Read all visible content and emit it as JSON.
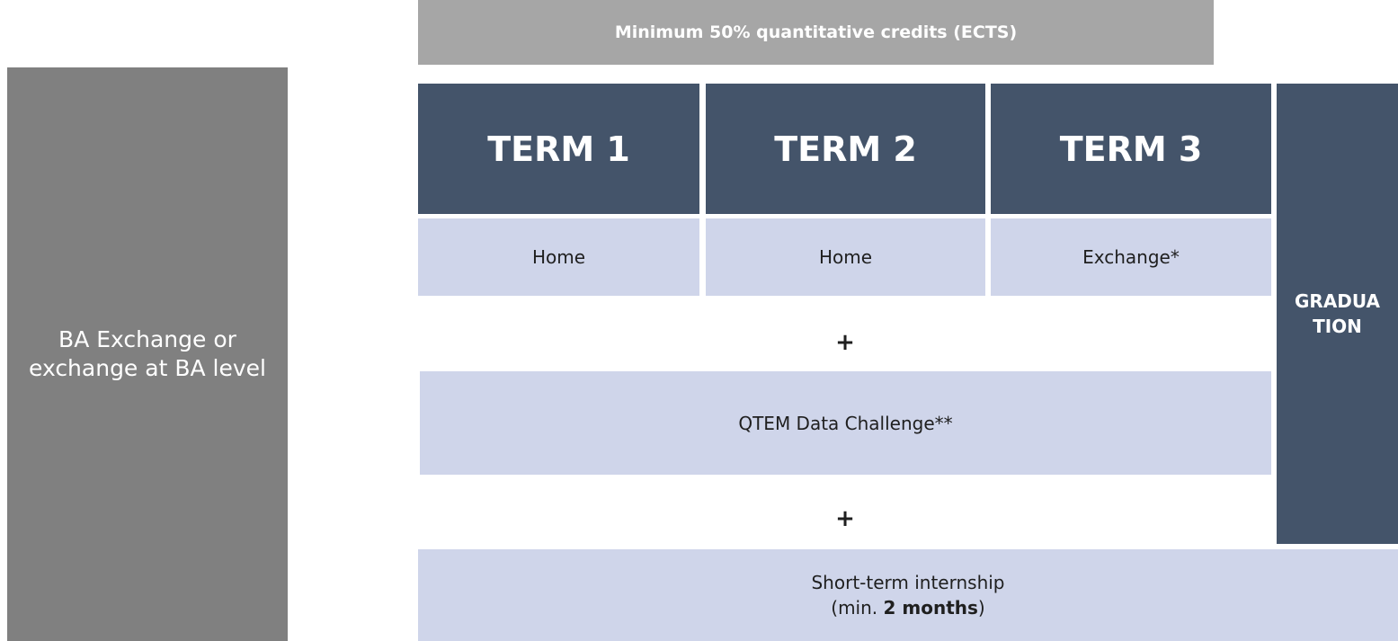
{
  "left_box": {
    "label": "BA Exchange or exchange at BA level"
  },
  "top_bar": {
    "label": "Minimum 50% quantitative credits (ECTS)"
  },
  "terms": [
    {
      "title": "TERM 1",
      "location": "Home"
    },
    {
      "title": "TERM 2",
      "location": "Home"
    },
    {
      "title": "TERM 3",
      "location": "Exchange*"
    }
  ],
  "plus_signs": [
    "+",
    "+"
  ],
  "data_challenge": {
    "label": "QTEM Data Challenge**"
  },
  "internship": {
    "line1": "Short-term internship",
    "line2_prefix": "(min. ",
    "line2_bold": "2 months",
    "line2_suffix": ")"
  },
  "graduation": {
    "lines": [
      "GRADUA",
      "TION"
    ]
  }
}
